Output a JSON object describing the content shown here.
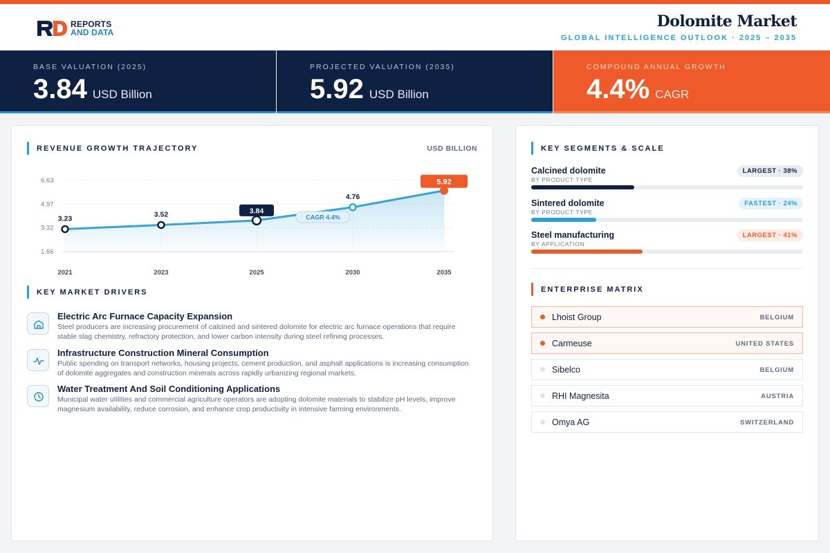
{
  "header": {
    "logo_line1": "REPORTS",
    "logo_line2": "AND DATA",
    "title": "Dolomite Market",
    "subtitle": "GLOBAL INTELLIGENCE OUTLOOK  ·  2025 – 2035"
  },
  "kpis": [
    {
      "label": "BASE VALUATION (2025)",
      "value": "3.84",
      "unit": "USD Billion"
    },
    {
      "label": "PROJECTED VALUATION (2035)",
      "value": "5.92",
      "unit": "USD Billion"
    },
    {
      "label": "COMPOUND ANNUAL GROWTH",
      "value": "4.4%",
      "unit": "CAGR"
    }
  ],
  "chart_section": {
    "title": "REVENUE GROWTH TRAJECTORY",
    "unit": "USD BILLION"
  },
  "chart_data": {
    "type": "line",
    "x": [
      "2021",
      "2023",
      "2025",
      "2030",
      "2035"
    ],
    "values": [
      3.23,
      3.52,
      3.84,
      4.76,
      5.92
    ],
    "value_labels": [
      "3.23",
      "3.52",
      "3.84",
      "4.76",
      "5.92"
    ],
    "yticks": [
      1.66,
      3.32,
      4.97,
      6.63
    ],
    "ytick_labels": [
      "1.66",
      "3.32",
      "4.97",
      "6.63"
    ],
    "ylim": [
      1.66,
      6.63
    ],
    "annotation": "CAGR 4.4%",
    "highlight": {
      "2025": "dark",
      "2035": "orange"
    },
    "line_color": "#3aa3d6",
    "grid": true
  },
  "drivers_section": {
    "title": "KEY MARKET DRIVERS"
  },
  "drivers": [
    {
      "icon": "factory-icon",
      "title": "Electric Arc Furnace Capacity Expansion",
      "text": "Steel producers are increasing procurement of calcined and sintered dolomite for electric arc furnace operations that require stable slag chemistry, refractory protection, and lower carbon intensity during steel refining processes."
    },
    {
      "icon": "pulse-icon",
      "title": "Infrastructure Construction Mineral Consumption",
      "text": "Public spending on transport networks, housing projects, cement production, and asphalt applications is increasing consumption of dolomite aggregates and construction minerals across rapidly urbanizing regional markets."
    },
    {
      "icon": "clock-icon",
      "title": "Water Treatment And Soil Conditioning Applications",
      "text": "Municipal water utilities and commercial agriculture operators are adopting dolomite materials to stabilize pH levels, improve magnesium availability, reduce corrosion, and enhance crop productivity in intensive farming environments."
    }
  ],
  "segments_section": {
    "title": "KEY SEGMENTS & SCALE"
  },
  "segments": [
    {
      "name": "Calcined dolomite",
      "sub": "BY PRODUCT TYPE",
      "badge": "LARGEST · 38%",
      "share": 0.38,
      "color": "#0e2142"
    },
    {
      "name": "Sintered dolomite",
      "sub": "BY PRODUCT TYPE",
      "badge": "FASTEST · 24%",
      "share": 0.24,
      "color": "#2a9fd6"
    },
    {
      "name": "Steel manufacturing",
      "sub": "BY APPLICATION",
      "badge": "LARGEST · 41%",
      "share": 0.41,
      "color": "#ee5a29"
    }
  ],
  "enterprise_section": {
    "title": "ENTERPRISE MATRIX"
  },
  "enterprises": [
    {
      "name": "Lhoist Group",
      "country": "BELGIUM"
    },
    {
      "name": "Carmeuse",
      "country": "UNITED STATES"
    },
    {
      "name": "Sibelco",
      "country": "BELGIUM"
    },
    {
      "name": "RHI Magnesita",
      "country": "AUSTRIA"
    },
    {
      "name": "Omya AG",
      "country": "SWITZERLAND"
    }
  ],
  "colors": {
    "navy": "#0e2142",
    "orange": "#ee5a29",
    "blue": "#2a9fd6"
  }
}
